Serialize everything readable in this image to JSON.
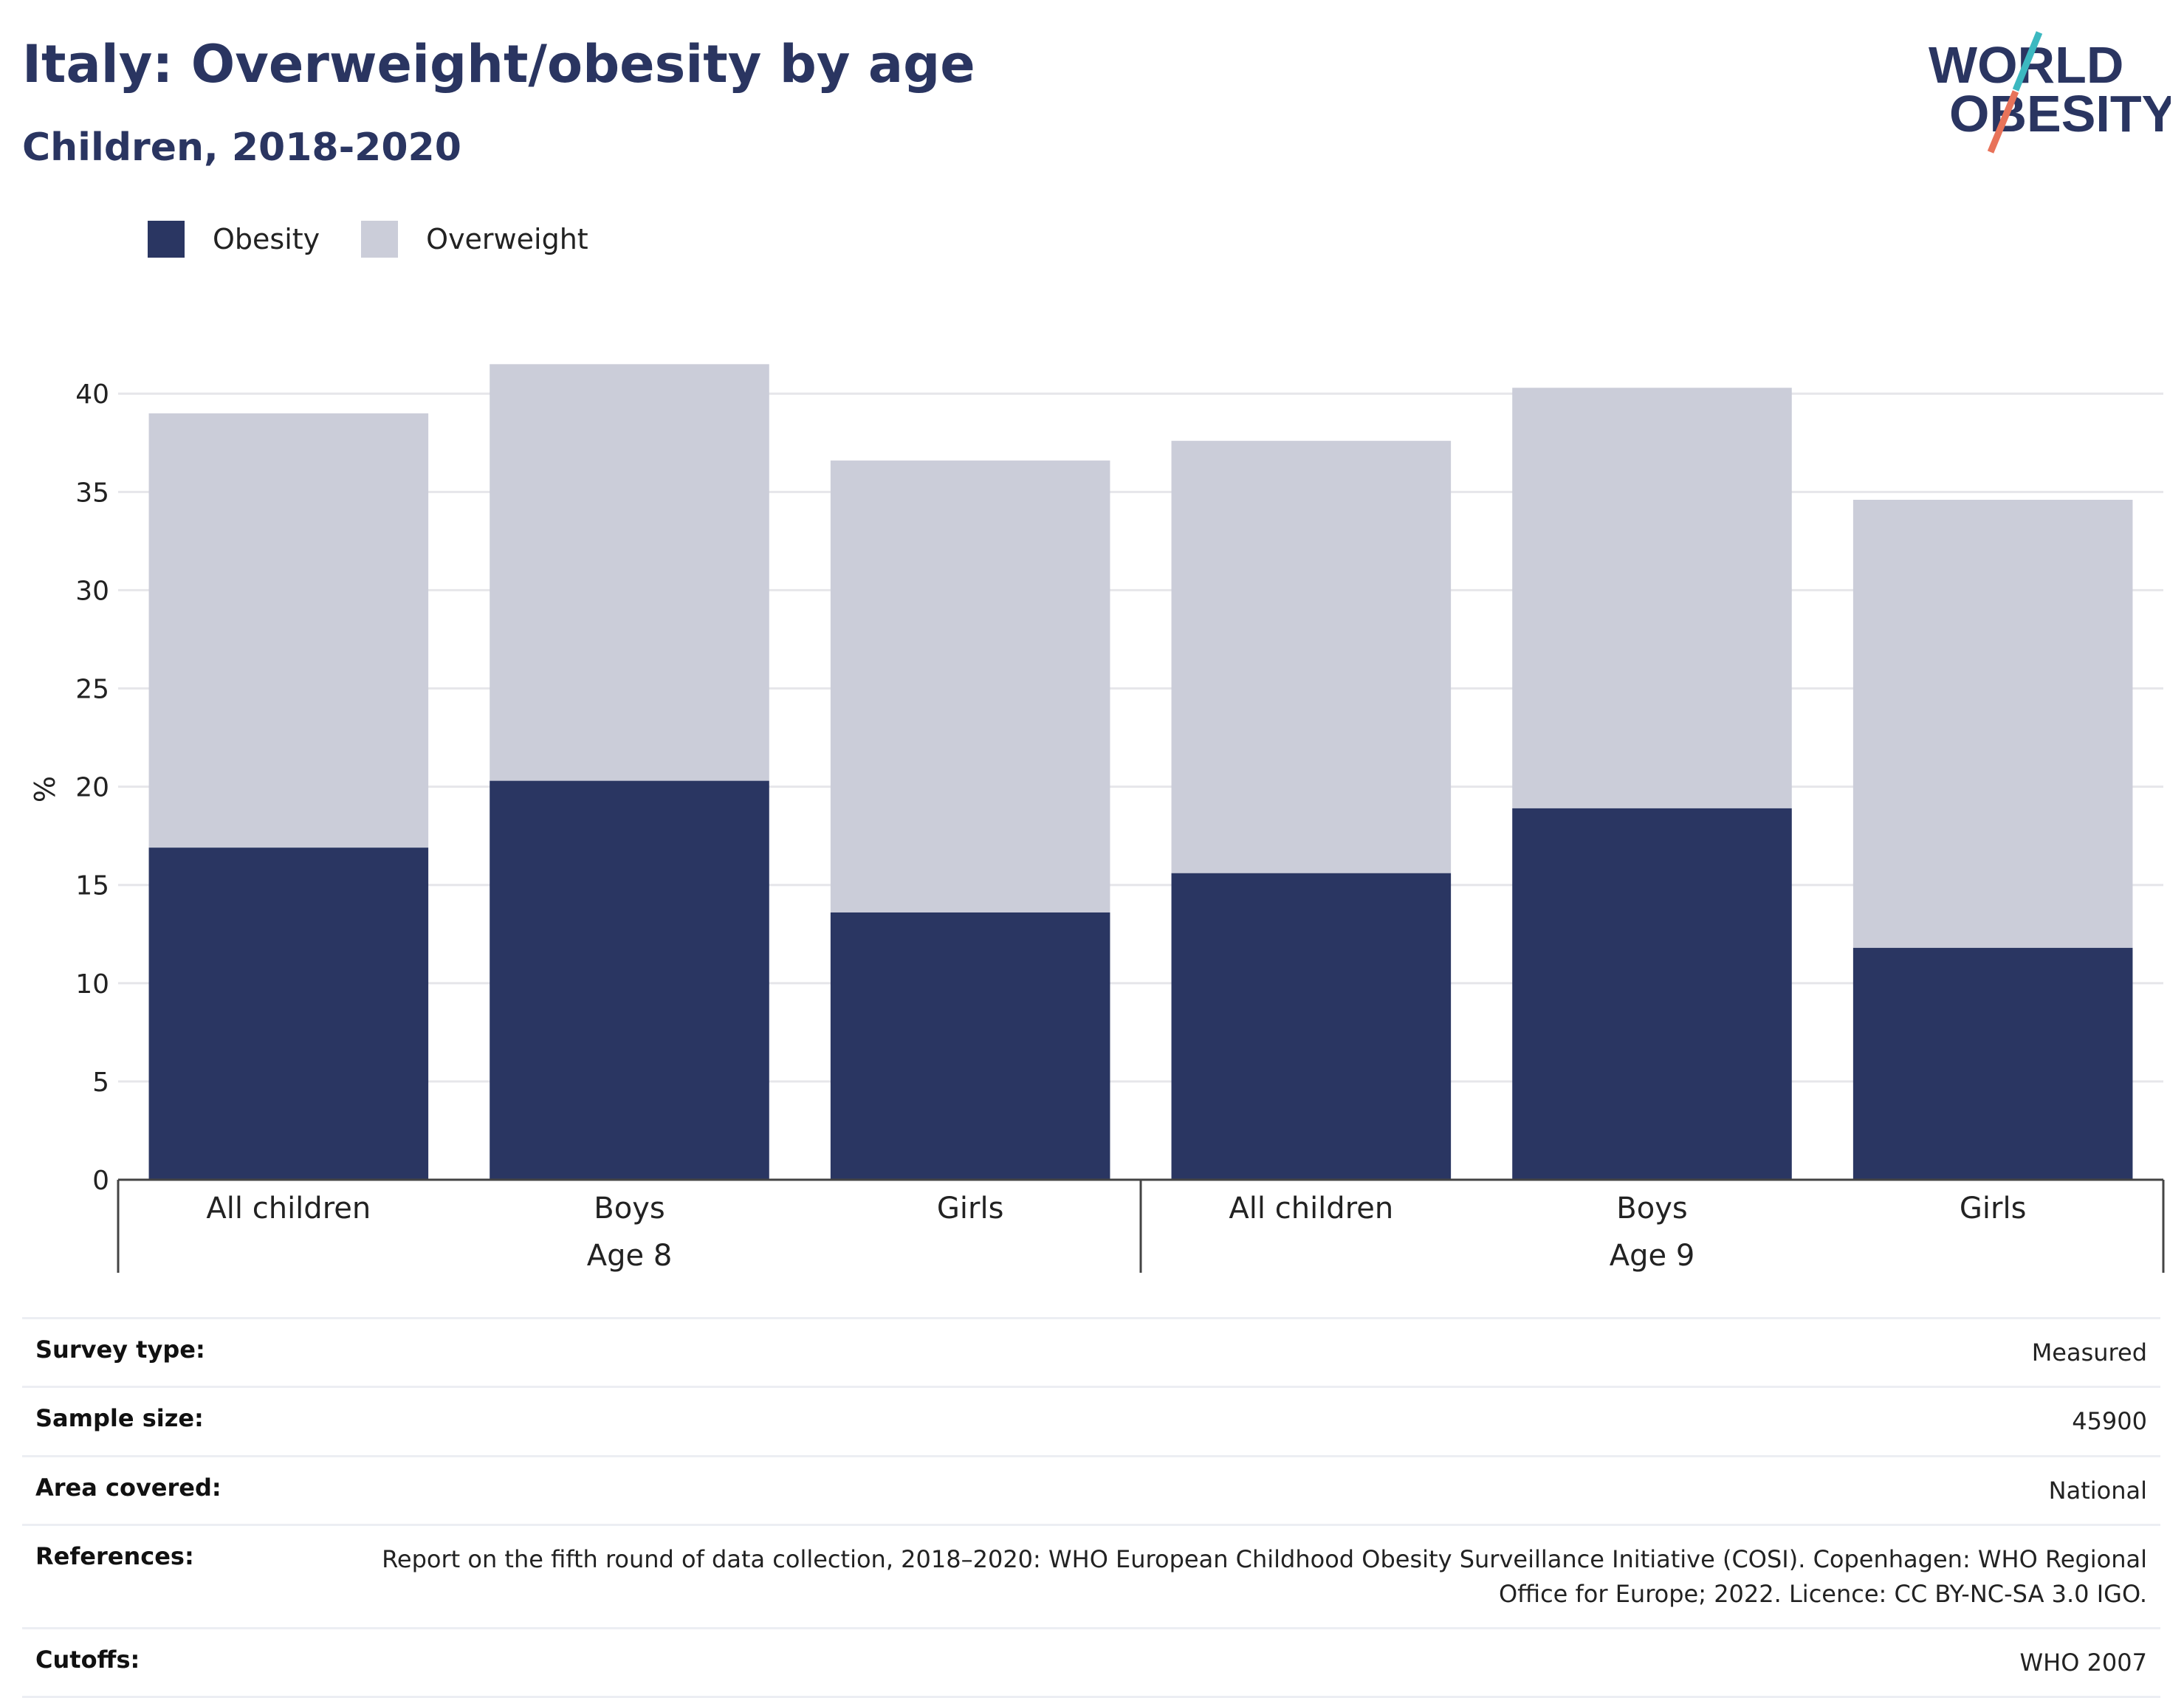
{
  "title": "Italy: Overweight/obesity by age",
  "subtitle": "Children, 2018-2020",
  "logo": {
    "line1": "WORLD",
    "line2": "OBESITY"
  },
  "colors": {
    "obesity": "#2a3662",
    "overweight": "#cbcdd9",
    "brand_text": "#2a3561",
    "accent_teal": "#3cb8c0",
    "accent_coral": "#e8735a"
  },
  "legend": [
    {
      "label": "Obesity",
      "color": "#2a3662"
    },
    {
      "label": "Overweight",
      "color": "#cbcdd9"
    }
  ],
  "chart_data": {
    "type": "bar",
    "stacked": true,
    "categories": [
      "All children",
      "Boys",
      "Girls",
      "All children",
      "Boys",
      "Girls"
    ],
    "groups": [
      {
        "label": "Age 8",
        "categories": [
          "All children",
          "Boys",
          "Girls"
        ]
      },
      {
        "label": "Age 9",
        "categories": [
          "All children",
          "Boys",
          "Girls"
        ]
      }
    ],
    "series": [
      {
        "name": "Obesity",
        "values": [
          16.9,
          20.3,
          13.6,
          15.6,
          18.9,
          11.8
        ]
      },
      {
        "name": "Overweight",
        "values": [
          22.1,
          21.2,
          23.0,
          22.0,
          21.4,
          22.8
        ]
      }
    ],
    "ylabel": "%",
    "xlabel": "",
    "ylim": [
      0,
      42
    ],
    "yticks": [
      0,
      5,
      10,
      15,
      20,
      25,
      30,
      35,
      40
    ],
    "grid": true,
    "legend_position": "top-left"
  },
  "meta": [
    {
      "key": "Survey type:",
      "value": "Measured"
    },
    {
      "key": "Sample size:",
      "value": "45900"
    },
    {
      "key": "Area covered:",
      "value": "National"
    },
    {
      "key": "References:",
      "value": "Report on the fifth round of data collection, 2018–2020: WHO European Childhood Obesity Surveillance Initiative (COSI). Copenhagen: WHO Regional Office for Europe; 2022. Licence: CC BY-NC-SA 3.0 IGO."
    },
    {
      "key": "Cutoffs:",
      "value": "WHO 2007"
    }
  ]
}
